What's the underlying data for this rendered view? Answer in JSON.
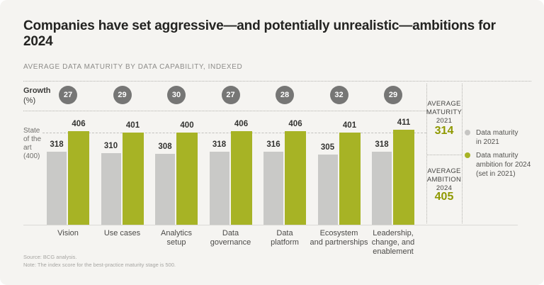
{
  "title": "Companies have set aggressive—and potentially unrealistic—ambitions for 2024",
  "subtitle": "AVERAGE DATA MATURITY BY DATA CAPABILITY, INDEXED",
  "growth_row": {
    "label_bold": "Growth",
    "label_unit": "(%)"
  },
  "reference_label": "State\nof the\nart\n(400)",
  "chart_data": {
    "type": "bar",
    "categories": [
      "Vision",
      "Use cases",
      "Analytics\nsetup",
      "Data\ngovernance",
      "Data\nplatform",
      "Ecosystem\nand partnerships",
      "Leadership,\nchange, and\nenablement"
    ],
    "series": [
      {
        "name": "Data maturity in 2021",
        "color": "#c9c9c7",
        "values": [
          318,
          310,
          308,
          318,
          316,
          305,
          318
        ]
      },
      {
        "name": "Data maturity ambition for 2024 (set in 2021)",
        "color": "#a7b325",
        "values": [
          406,
          401,
          400,
          406,
          406,
          401,
          411
        ]
      }
    ],
    "growth_pct": [
      27,
      29,
      30,
      27,
      28,
      32,
      29
    ],
    "reference_line": {
      "label": "State of the art",
      "value": 400
    },
    "ylim": [
      0,
      400
    ],
    "grid": "reference dashed line at 400 only",
    "legend_position": "right"
  },
  "summary_panel": {
    "maturity": {
      "label": "AVERAGE\nMATURITY\n2021",
      "value": "314"
    },
    "ambition": {
      "label": "AVERAGE\nAMBITION\n2024",
      "value": "405"
    }
  },
  "legend": {
    "items": [
      {
        "label": "Data maturity\nin 2021",
        "color": "#c6c5c3"
      },
      {
        "label": "Data maturity\nambition for 2024\n(set in 2021)",
        "color": "#a7b325"
      }
    ]
  },
  "footer": "Source: BCG analysis.\nNote: The index score for the best-practice maturity stage is 500.",
  "colors": {
    "background": "#f5f4f1",
    "bar_2021": "#c9c9c7",
    "bar_2024": "#a7b325",
    "growth_circle": "#767675",
    "summary_value": "#8f9900"
  }
}
